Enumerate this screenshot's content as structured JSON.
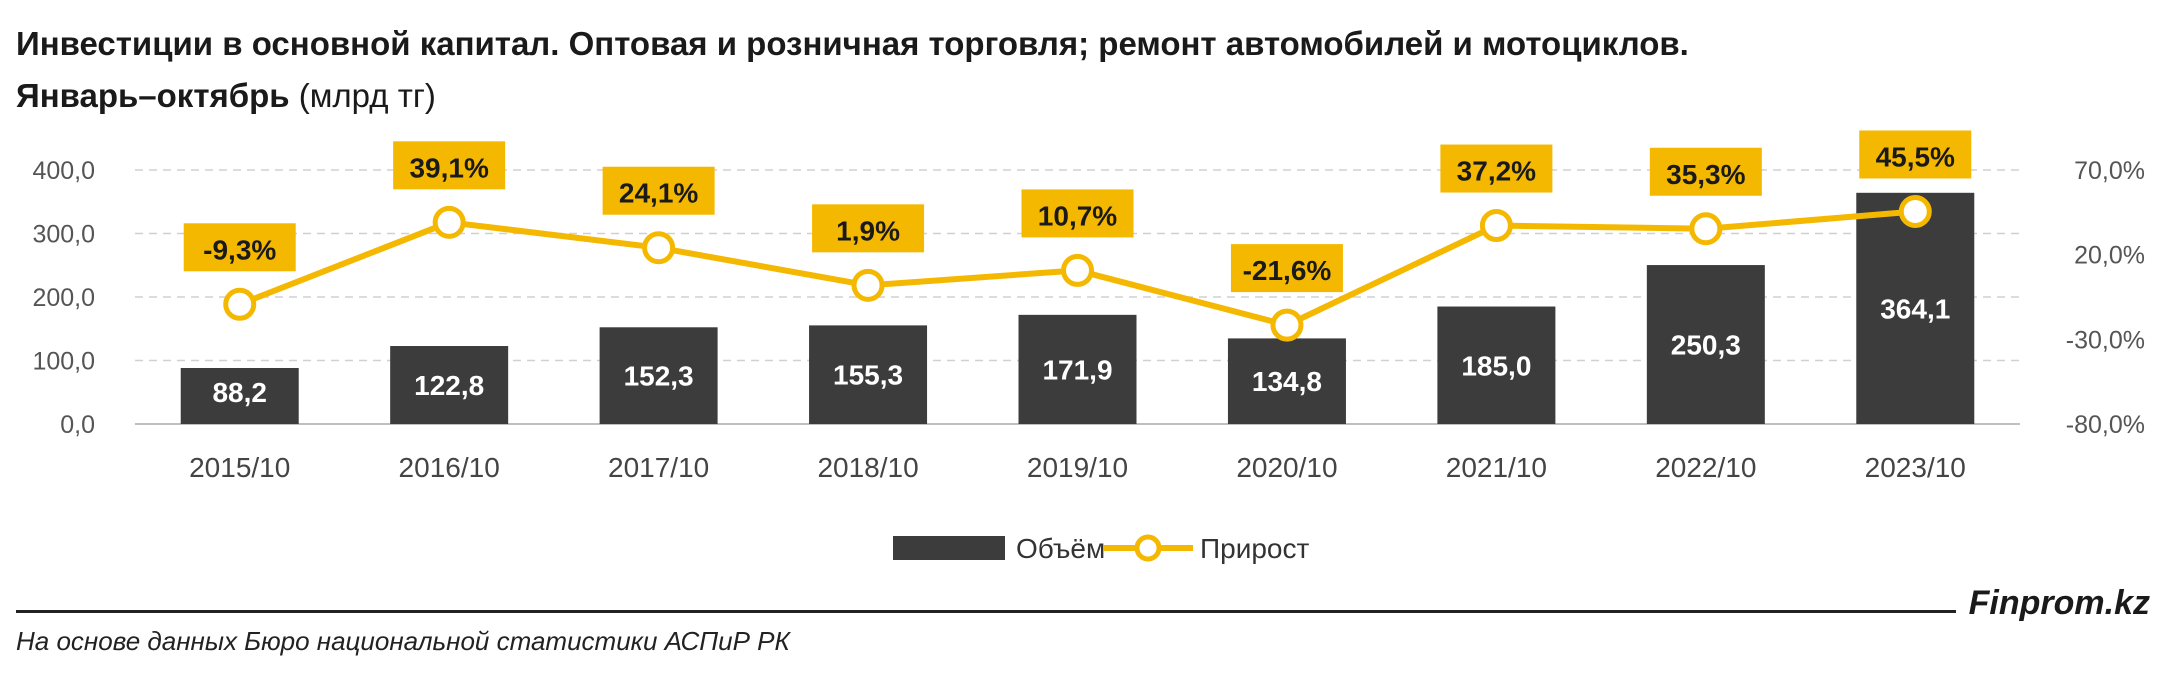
{
  "title": {
    "line1": "Инвестиции в основной капитал. Оптовая и розничная торговля; ремонт автомобилей и мотоциклов.",
    "line2_bold": "Январь–октябрь",
    "line2_normal": " (млрд тг)"
  },
  "chart_data": {
    "type": "bar",
    "categories": [
      "2015/10",
      "2016/10",
      "2017/10",
      "2018/10",
      "2019/10",
      "2020/10",
      "2021/10",
      "2022/10",
      "2023/10"
    ],
    "series": [
      {
        "name": "Объём",
        "type": "bar",
        "axis": "left",
        "values": [
          88.2,
          122.8,
          152.3,
          155.3,
          171.9,
          134.8,
          185.0,
          250.3,
          364.1
        ],
        "labels": [
          "88,2",
          "122,8",
          "152,3",
          "155,3",
          "171,9",
          "134,8",
          "185,0",
          "250,3",
          "364,1"
        ],
        "color": "#3c3c3c"
      },
      {
        "name": "Прирост",
        "type": "line",
        "axis": "right",
        "values": [
          -9.3,
          39.1,
          24.1,
          1.9,
          10.7,
          -21.6,
          37.2,
          35.3,
          45.5
        ],
        "labels": [
          "-9,3%",
          "39,1%",
          "24,1%",
          "1,9%",
          "10,7%",
          "-21,6%",
          "37,2%",
          "35,3%",
          "45,5%"
        ],
        "color": "#f5b800"
      }
    ],
    "y_left": {
      "min": 0,
      "max": 400,
      "ticks": [
        "0,0",
        "100,0",
        "200,0",
        "300,0",
        "400,0"
      ]
    },
    "y_right": {
      "min": -80,
      "max": 70,
      "ticks": [
        "-80,0%",
        "-30,0%",
        "20,0%",
        "70,0%"
      ]
    },
    "grid": true,
    "legend_position": "bottom"
  },
  "footer": {
    "brand": "Finprom.kz",
    "source": "На основе данных Бюро национальной статистики АСПиР РК"
  }
}
